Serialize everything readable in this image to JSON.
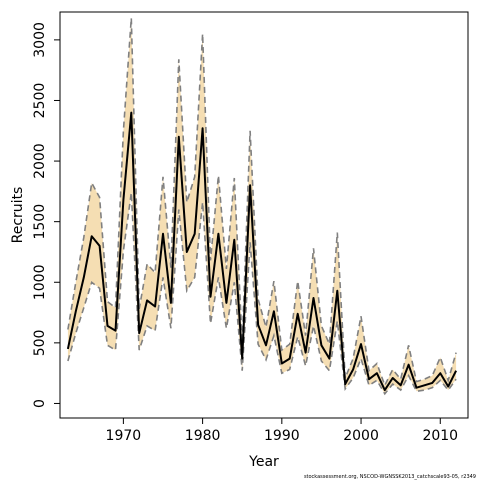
{
  "chart_data": {
    "type": "line",
    "title": "",
    "xlabel": "Year",
    "ylabel": "Recruits",
    "xlim": [
      1962,
      2013.5
    ],
    "ylim": [
      -120,
      3230
    ],
    "x_ticks": [
      1970,
      1980,
      1990,
      2000,
      2010
    ],
    "y_ticks": [
      0,
      500,
      1000,
      1500,
      2000,
      2500,
      3000
    ],
    "grid": false,
    "legend": "none",
    "source_note": "stockassessment.org, NSCOD-WGNSSK2013_catchscale93-05, r2349",
    "colors": {
      "band": "#f5deb3",
      "estimate": "#000000",
      "bounds": "#808080"
    },
    "series": [
      {
        "x": [
          1963,
          1964,
          1965,
          1966,
          1967,
          1968,
          1969,
          1970,
          1971,
          1972,
          1973,
          1974,
          1975,
          1976,
          1977,
          1978,
          1979,
          1980,
          1981,
          1982,
          1983,
          1984,
          1985,
          1986,
          1987,
          1988,
          1989,
          1990,
          1991,
          1992,
          1993,
          1994,
          1995,
          1996,
          1997,
          1998,
          1999,
          2000,
          2001,
          2002,
          2003,
          2004,
          2005,
          2006,
          2007,
          2008,
          2009,
          2010,
          2011,
          2012
        ],
        "estimate": [
          450,
          760,
          1040,
          1380,
          1300,
          640,
          600,
          1680,
          2400,
          580,
          850,
          800,
          1400,
          830,
          2200,
          1250,
          1400,
          2270,
          880,
          1400,
          830,
          1350,
          370,
          1800,
          650,
          480,
          760,
          330,
          370,
          740,
          420,
          870,
          480,
          370,
          930,
          160,
          280,
          490,
          200,
          250,
          110,
          210,
          150,
          320,
          130,
          150,
          170,
          250,
          140,
          270
        ],
        "lower": [
          350,
          580,
          790,
          1000,
          950,
          480,
          440,
          1260,
          1740,
          440,
          640,
          600,
          1040,
          620,
          1600,
          930,
          1040,
          1660,
          660,
          1040,
          620,
          1000,
          270,
          1330,
          490,
          360,
          560,
          250,
          280,
          550,
          310,
          640,
          350,
          270,
          680,
          120,
          210,
          370,
          150,
          190,
          80,
          160,
          110,
          230,
          100,
          110,
          130,
          190,
          110,
          200
        ],
        "upper": [
          610,
          1000,
          1370,
          1820,
          1700,
          840,
          790,
          2250,
          3180,
          780,
          1150,
          1080,
          1870,
          1120,
          2840,
          1660,
          1870,
          3050,
          1180,
          1880,
          1110,
          1860,
          500,
          2250,
          860,
          630,
          1010,
          440,
          490,
          1010,
          560,
          1280,
          640,
          490,
          1410,
          210,
          370,
          720,
          270,
          330,
          150,
          280,
          200,
          480,
          180,
          200,
          230,
          380,
          190,
          420
        ]
      }
    ]
  }
}
